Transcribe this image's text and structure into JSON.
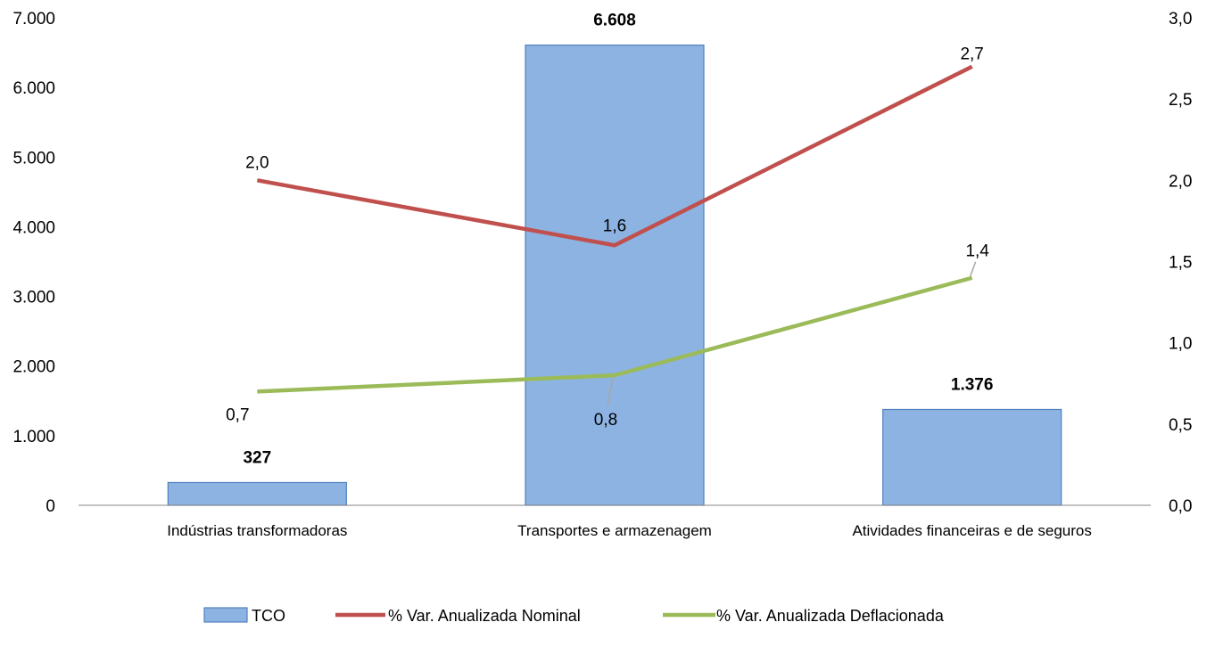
{
  "chart_data": {
    "type": "bar",
    "categories": [
      "Indústrias transformadoras",
      "Transportes e armazenagem",
      "Atividades financeiras e de seguros"
    ],
    "bar_series": {
      "name": "TCO",
      "values": [
        327,
        6608,
        1376
      ],
      "value_labels": [
        "327",
        "6.608",
        "1.376"
      ],
      "color": "#8DB3E2",
      "border": "#4F81BD"
    },
    "line_series": [
      {
        "name": "% Var. Anualizada Nominal",
        "values": [
          2.0,
          1.6,
          2.7
        ],
        "value_labels": [
          "2,0",
          "1,6",
          "2,7"
        ],
        "color": "#C0504D",
        "axis": "right"
      },
      {
        "name": "% Var. Anualizada Deflacionada",
        "values": [
          0.7,
          0.8,
          1.4
        ],
        "value_labels": [
          "0,7",
          "0,8",
          "1,4"
        ],
        "color": "#9BBB59",
        "axis": "right"
      }
    ],
    "left_axis": {
      "ylim": [
        0,
        7000
      ],
      "ticks": [
        0,
        1000,
        2000,
        3000,
        4000,
        5000,
        6000,
        7000
      ],
      "tick_labels": [
        "0",
        "1.000",
        "2.000",
        "3.000",
        "4.000",
        "5.000",
        "6.000",
        "7.000"
      ]
    },
    "right_axis": {
      "ylim": [
        0,
        3
      ],
      "ticks": [
        0,
        0.5,
        1,
        1.5,
        2,
        2.5,
        3
      ],
      "tick_labels": [
        "0,0",
        "0,5",
        "1,0",
        "1,5",
        "2,0",
        "2,5",
        "3,0"
      ]
    },
    "legend_position": "bottom",
    "grid": false
  }
}
